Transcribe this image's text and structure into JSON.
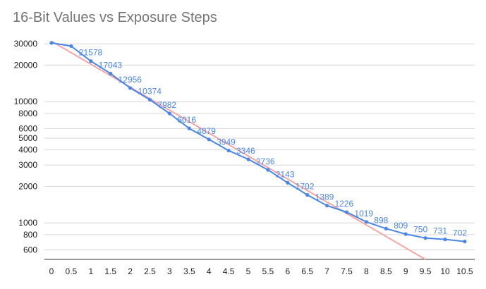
{
  "chart_data": {
    "type": "line",
    "title": "16-Bit Values vs Exposure Steps",
    "xlabel": "",
    "ylabel": "",
    "x": [
      0,
      0.5,
      1,
      1.5,
      2,
      2.5,
      3,
      3.5,
      4,
      4.5,
      5,
      5.5,
      6,
      6.5,
      7,
      7.5,
      8,
      8.5,
      9,
      9.5,
      10,
      10.5
    ],
    "x_tick_labels": [
      "0",
      "0.5",
      "1",
      "1.5",
      "2",
      "2.5",
      "3",
      "3.5",
      "4",
      "4.5",
      "5",
      "5.5",
      "6",
      "6.5",
      "7",
      "7.5",
      "8",
      "8.5",
      "9",
      "9.5",
      "10",
      "10.5"
    ],
    "y_scale": "log",
    "ylim": [
      500,
      33000
    ],
    "y_ticks": [
      600,
      800,
      1000,
      2000,
      3000,
      4000,
      5000,
      6000,
      8000,
      10000,
      20000,
      30000
    ],
    "y_tick_labels": [
      "600",
      "800",
      "1000",
      "2000",
      "3000",
      "4000",
      "5000",
      "6000",
      "8000",
      "10000",
      "20000",
      "30000"
    ],
    "grid": true,
    "series": [
      {
        "color": "#4a86e8",
        "markers": true,
        "values": [
          30500,
          28700,
          21578,
          17043,
          12956,
          10374,
          7982,
          6016,
          4879,
          3949,
          3346,
          2736,
          2143,
          1702,
          1389,
          1226,
          1019,
          898,
          809,
          750,
          731,
          702
        ],
        "data_labels": [
          {
            "x": 1,
            "text": "21578"
          },
          {
            "x": 1.5,
            "text": "17043"
          },
          {
            "x": 2,
            "text": "12956"
          },
          {
            "x": 2.5,
            "text": "10374"
          },
          {
            "x": 3,
            "text": "7982"
          },
          {
            "x": 3.5,
            "text": "6016"
          },
          {
            "x": 4,
            "text": "4879"
          },
          {
            "x": 4.5,
            "text": "3949"
          },
          {
            "x": 5,
            "text": "3346"
          },
          {
            "x": 5.5,
            "text": "2736"
          },
          {
            "x": 6,
            "text": "2143"
          },
          {
            "x": 6.5,
            "text": "1702"
          },
          {
            "x": 7,
            "text": "1389"
          },
          {
            "x": 7.5,
            "text": "1226"
          },
          {
            "x": 8,
            "text": "1019"
          },
          {
            "x": 8.5,
            "text": "898"
          },
          {
            "x": 9,
            "text": "809"
          },
          {
            "x": 9.5,
            "text": "750"
          },
          {
            "x": 10,
            "text": "731"
          },
          {
            "x": 10.5,
            "text": "702"
          }
        ]
      }
    ],
    "trendline": {
      "color": "#f4a6a6",
      "type": "exponential",
      "x_range": [
        0,
        9.5
      ],
      "y_range": [
        31500,
        500
      ]
    }
  }
}
